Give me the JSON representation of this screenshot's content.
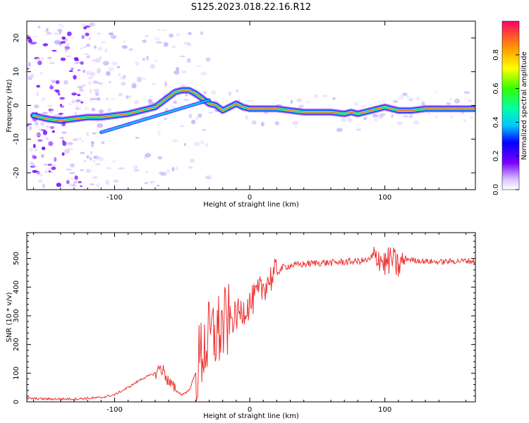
{
  "title": "S125.2023.018.22.16.R12",
  "chart_data": [
    {
      "type": "heatmap",
      "name": "spectrogram",
      "xlabel": "Height of straight line (km)",
      "ylabel": "Frequency (Hz)",
      "xlim": [
        -165,
        167
      ],
      "ylim": [
        -25,
        25
      ],
      "xticks": [
        -100,
        0,
        100
      ],
      "yticks": [
        -20,
        -10,
        0,
        10,
        20
      ],
      "ridge": {
        "x": [
          -160,
          -150,
          -140,
          -130,
          -120,
          -110,
          -100,
          -90,
          -80,
          -70,
          -65,
          -60,
          -55,
          -50,
          -45,
          -40,
          -35,
          -30,
          -25,
          -20,
          -15,
          -10,
          -5,
          0,
          10,
          20,
          30,
          40,
          50,
          60,
          70,
          75,
          80,
          85,
          90,
          95,
          100,
          105,
          110,
          115,
          120,
          130,
          140,
          150,
          160,
          167
        ],
        "freq": [
          -3,
          -4,
          -4.5,
          -4,
          -3.5,
          -3.5,
          -3,
          -2.5,
          -1.5,
          -0.5,
          1,
          2.5,
          4,
          4.5,
          4.5,
          3.5,
          2,
          0.5,
          0,
          -1.5,
          -0.5,
          0.5,
          -0.5,
          -1,
          -1,
          -1,
          -1.5,
          -2,
          -2,
          -2,
          -2.5,
          -2,
          -2.5,
          -2,
          -1.5,
          -1,
          -0.5,
          -1,
          -1.5,
          -1.5,
          -1.5,
          -1,
          -1,
          -1,
          -1,
          -1
        ]
      },
      "colorbar": {
        "label": "Normalized spectral amplitude",
        "ticks": [
          "0.0",
          "0.2",
          "0.4",
          "0.6",
          "0.8"
        ]
      }
    },
    {
      "type": "line",
      "name": "snr",
      "xlabel": "Height of straight line (km)",
      "ylabel": "SNR (10 * v/v)",
      "xlim": [
        -165,
        167
      ],
      "ylim": [
        0,
        590
      ],
      "xticks": [
        -100,
        0,
        100
      ],
      "yticks": [
        0,
        100,
        200,
        300,
        400,
        500
      ],
      "color": "#ee3333",
      "series": {
        "x": [
          -165,
          -150,
          -130,
          -110,
          -100,
          -90,
          -80,
          -75,
          -70,
          -66,
          -63,
          -60,
          -55,
          -50,
          -45,
          -40,
          -35,
          -30,
          -25,
          -20,
          -15,
          -10,
          -5,
          0,
          5,
          10,
          15,
          20,
          25,
          30,
          40,
          50,
          60,
          70,
          80,
          90,
          95,
          100,
          105,
          110,
          115,
          120,
          130,
          140,
          150,
          160,
          167
        ],
        "values": [
          12,
          10,
          10,
          15,
          25,
          50,
          80,
          90,
          100,
          120,
          100,
          70,
          40,
          25,
          40,
          100,
          180,
          220,
          240,
          260,
          280,
          300,
          320,
          340,
          370,
          400,
          430,
          450,
          470,
          475,
          480,
          485,
          485,
          488,
          490,
          495,
          510,
          480,
          500,
          470,
          500,
          495,
          490,
          488,
          490,
          492,
          490
        ]
      }
    }
  ]
}
